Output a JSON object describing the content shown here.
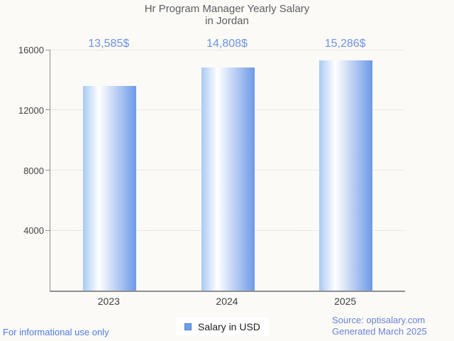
{
  "title": {
    "line1": "Hr Program Manager Yearly Salary",
    "line2": "in Jordan"
  },
  "chart_data": {
    "type": "bar",
    "title": "Hr Program Manager Yearly Salary in Jordan",
    "categories": [
      "2023",
      "2024",
      "2025"
    ],
    "values": [
      13585,
      14808,
      15286
    ],
    "value_labels": [
      "13,585$",
      "14,808$",
      "15,286$"
    ],
    "xlabel": "",
    "ylabel": "",
    "ylim": [
      0,
      16000
    ],
    "yticks": [
      4000,
      8000,
      12000,
      16000
    ],
    "grid": true,
    "legend_position": "bottom",
    "legend": [
      {
        "label": "Salary in USD",
        "color": "#6d9eeb"
      }
    ],
    "bar_gradient": [
      "#a9c9f4",
      "#ffffff",
      "#6d99e8"
    ]
  },
  "footer": {
    "disclaimer": "For informational use only",
    "source_line1": "Source: optisalary.com",
    "source_line2": "Generated March 2025"
  },
  "colors": {
    "background": "#fbfaf7",
    "title_text": "#5c5e60",
    "annotation_text": "#6d92de",
    "axis_line": "#8f8f8f",
    "gridline": "#e9e8e4",
    "axis_label": "#444444",
    "footer_disclaimer": "#4d7ae3",
    "footer_source": "#6b82d6"
  }
}
